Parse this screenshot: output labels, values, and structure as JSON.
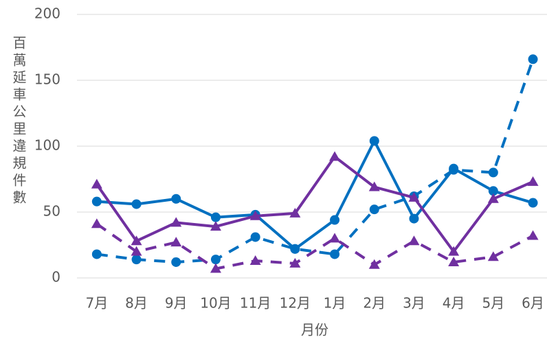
{
  "chart_data": {
    "type": "line",
    "y_label": "百萬延車公里違規件數",
    "x_label": "月份",
    "categories": [
      "7月",
      "8月",
      "9月",
      "10月",
      "11月",
      "12月",
      "1月",
      "2月",
      "3月",
      "4月",
      "5月",
      "6月"
    ],
    "series": [
      {
        "color": "#0070c0",
        "dash": false,
        "marker": "circle",
        "values": [
          58,
          56,
          60,
          46,
          48,
          22,
          44,
          104,
          45,
          83,
          66,
          57
        ]
      },
      {
        "color": "#0070c0",
        "dash": true,
        "marker": "circle",
        "values": [
          18,
          14,
          12,
          14,
          31,
          22,
          18,
          52,
          62,
          82,
          80,
          166
        ]
      },
      {
        "color": "#7030a0",
        "dash": false,
        "marker": "triangle",
        "values": [
          71,
          28,
          42,
          39,
          47,
          49,
          92,
          69,
          61,
          20,
          60,
          73
        ]
      },
      {
        "color": "#7030a0",
        "dash": true,
        "marker": "triangle",
        "values": [
          41,
          20,
          27,
          7,
          13,
          11,
          30,
          10,
          28,
          12,
          16,
          32
        ]
      }
    ],
    "ylim": [
      0,
      200
    ],
    "yticks": [
      0,
      50,
      100,
      150,
      200
    ],
    "grid": true
  }
}
